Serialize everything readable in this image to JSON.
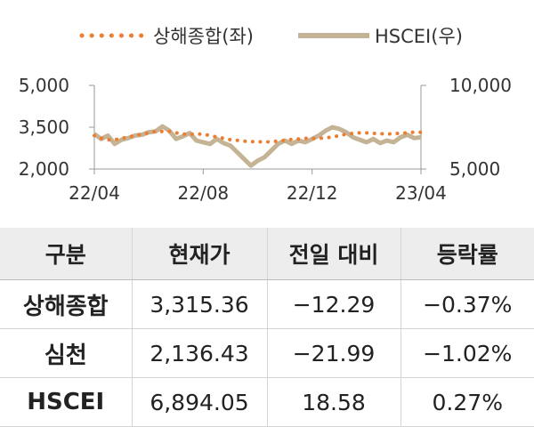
{
  "chart_data": {
    "type": "line",
    "legend": {
      "position": "top",
      "entries": [
        {
          "name": "상해종합(좌)",
          "style": "dotted",
          "color": "#ed7d31"
        },
        {
          "name": "HSCEI(우)",
          "style": "solid",
          "color": "#c4b394"
        }
      ]
    },
    "x_ticks": [
      "22/04",
      "22/08",
      "22/12",
      "23/04"
    ],
    "y_left": {
      "ticks": [
        "5,000",
        "3,500",
        "2,000"
      ],
      "range": [
        2000,
        5000
      ]
    },
    "y_right": {
      "ticks": [
        "10,000",
        "5,000"
      ],
      "range": [
        5000,
        10000
      ]
    },
    "grid": false,
    "series": [
      {
        "name": "상해종합(좌)",
        "axis": "left",
        "x": [
          0,
          0.25,
          0.5,
          0.75,
          1,
          1.25,
          1.5,
          1.75,
          2,
          2.25,
          2.5,
          2.75,
          3,
          3.25,
          3.5,
          3.75,
          4,
          4.25,
          4.5,
          4.75,
          5,
          5.25,
          5.5,
          5.75,
          6,
          6.25,
          6.5,
          6.75,
          7,
          7.25,
          7.5,
          7.75,
          8,
          8.25,
          8.5,
          8.75,
          9,
          9.25,
          9.5,
          9.75,
          10,
          10.25,
          10.5,
          10.75,
          11,
          11.25,
          11.5,
          11.75,
          12
        ],
        "values": [
          3200,
          3100,
          3050,
          3050,
          3100,
          3150,
          3200,
          3250,
          3300,
          3350,
          3350,
          3350,
          3300,
          3250,
          3250,
          3250,
          3250,
          3200,
          3150,
          3100,
          3050,
          3030,
          3000,
          2980,
          2980,
          2970,
          2980,
          3000,
          3030,
          3060,
          3080,
          3100,
          3090,
          3100,
          3120,
          3150,
          3200,
          3250,
          3280,
          3300,
          3300,
          3280,
          3270,
          3250,
          3270,
          3280,
          3300,
          3320,
          3315
        ]
      },
      {
        "name": "HSCEI(우)",
        "axis": "right",
        "x": [
          0,
          0.25,
          0.5,
          0.75,
          1,
          1.25,
          1.5,
          1.75,
          2,
          2.25,
          2.5,
          2.75,
          3,
          3.25,
          3.5,
          3.75,
          4,
          4.25,
          4.5,
          4.75,
          5,
          5.25,
          5.5,
          5.75,
          6,
          6.25,
          6.5,
          6.75,
          7,
          7.25,
          7.5,
          7.75,
          8,
          8.25,
          8.5,
          8.75,
          9,
          9.25,
          9.5,
          9.75,
          10,
          10.25,
          10.5,
          10.75,
          11,
          11.25,
          11.5,
          11.75,
          12
        ],
        "values": [
          7100,
          6800,
          7000,
          6500,
          6750,
          6850,
          7000,
          7050,
          7200,
          7250,
          7550,
          7300,
          6800,
          6950,
          7150,
          6700,
          6600,
          6500,
          6800,
          6550,
          6400,
          6000,
          5600,
          5200,
          5500,
          5700,
          6100,
          6500,
          6700,
          6500,
          6700,
          6600,
          6800,
          7000,
          7300,
          7500,
          7400,
          7200,
          6900,
          6750,
          6600,
          6800,
          6550,
          6700,
          6600,
          6900,
          7050,
          6850,
          6894
        ]
      }
    ]
  },
  "table": {
    "headers": [
      "구분",
      "현재가",
      "전일 대비",
      "등락률"
    ],
    "rows": [
      [
        "상해종합",
        "3,315.36",
        "−12.29",
        "−0.37%"
      ],
      [
        "심천",
        "2,136.43",
        "−21.99",
        "−1.02%"
      ],
      [
        "HSCEI",
        "6,894.05",
        "18.58",
        "0.27%"
      ]
    ]
  }
}
